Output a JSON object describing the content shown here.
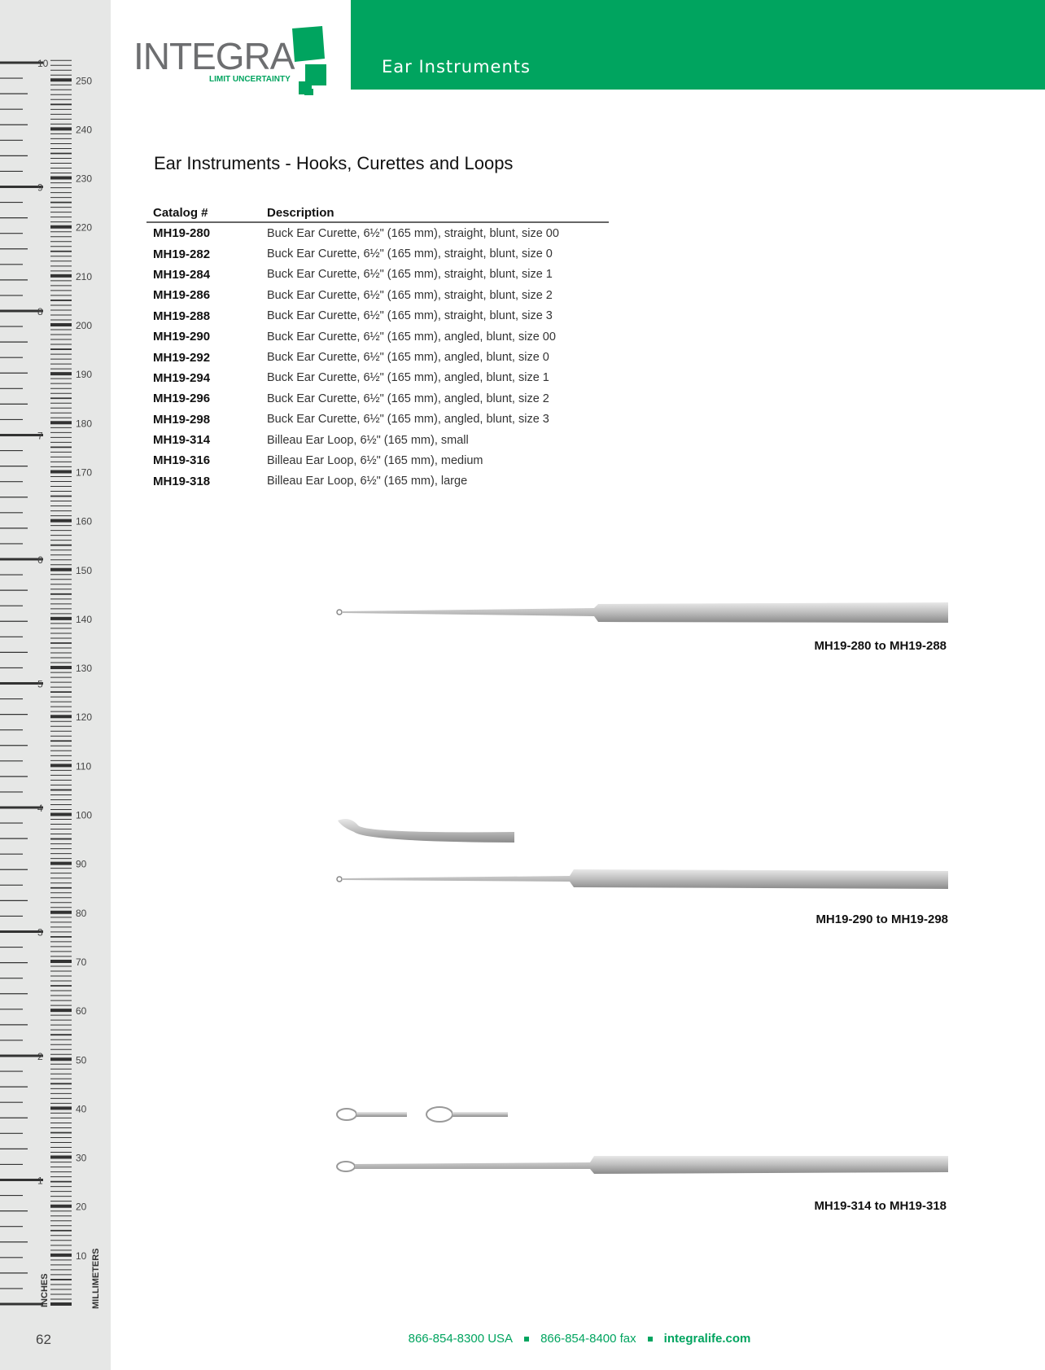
{
  "header": {
    "section": "Ear Instruments"
  },
  "logo": {
    "word": "INTEGRA",
    "tagline": "LIMIT UNCERTAINTY"
  },
  "title": "Ear Instruments - Hooks, Curettes and Loops",
  "table": {
    "headers": [
      "Catalog #",
      "Description"
    ],
    "rows": [
      [
        "MH19-280",
        "Buck Ear Curette, 6½\" (165 mm), straight, blunt, size 00"
      ],
      [
        "MH19-282",
        "Buck Ear Curette, 6½\" (165 mm), straight, blunt, size 0"
      ],
      [
        "MH19-284",
        "Buck Ear Curette, 6½\" (165 mm), straight, blunt, size 1"
      ],
      [
        "MH19-286",
        "Buck Ear Curette, 6½\" (165 mm), straight, blunt, size 2"
      ],
      [
        "MH19-288",
        "Buck Ear Curette, 6½\" (165 mm), straight, blunt, size 3"
      ],
      [
        "MH19-290",
        "Buck Ear Curette, 6½\" (165 mm), angled, blunt, size 00"
      ],
      [
        "MH19-292",
        "Buck Ear Curette, 6½\" (165 mm), angled, blunt, size 0"
      ],
      [
        "MH19-294",
        "Buck Ear Curette, 6½\" (165 mm), angled, blunt, size 1"
      ],
      [
        "MH19-296",
        "Buck Ear Curette, 6½\" (165 mm), angled, blunt, size 2"
      ],
      [
        "MH19-298",
        "Buck Ear Curette, 6½\" (165 mm), angled, blunt, size 3"
      ],
      [
        "MH19-314",
        "Billeau Ear Loop, 6½\" (165 mm), small"
      ],
      [
        "MH19-316",
        "Billeau Ear Loop, 6½\" (165 mm), medium"
      ],
      [
        "MH19-318",
        "Billeau Ear Loop, 6½\" (165 mm), large"
      ]
    ]
  },
  "captions": [
    "MH19-280 to MH19-288",
    "MH19-290 to MH19-298",
    "MH19-314 to MH19-318"
  ],
  "ruler": {
    "inches_label": "INCHES",
    "mm_label": "MILLIMETERS"
  },
  "page_number": "62",
  "footer": {
    "phone": "866-854-8300 USA",
    "fax": "866-854-8400 fax",
    "web": "integralife.com"
  },
  "colors": {
    "brand_green": "#00a45f",
    "ruler_bg": "#e6e7e6",
    "logo_gray": "#6d6e70"
  }
}
